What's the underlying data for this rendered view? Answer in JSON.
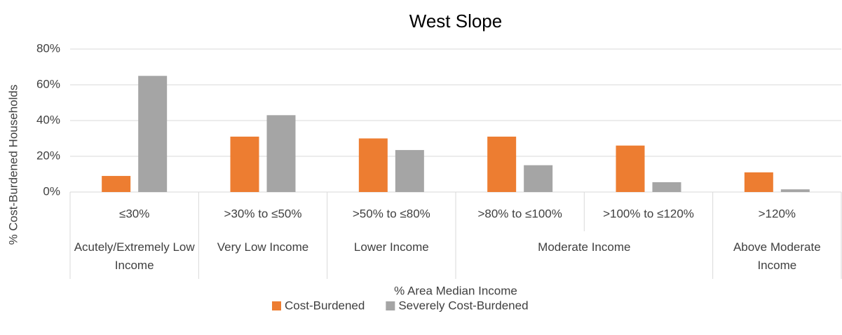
{
  "chart_data": {
    "type": "bar",
    "title": "West Slope",
    "categories": [
      "≤30%",
      ">30% to ≤50%",
      ">50% to ≤80%",
      ">80% to ≤100%",
      ">100% to ≤120%",
      ">120%"
    ],
    "group_labels": [
      "Acutely/Extremely Low Income",
      "Very Low Income",
      "Lower Income",
      "Moderate Income",
      null,
      "Above Moderate Income"
    ],
    "series": [
      {
        "name": "Cost-Burdened",
        "color": "#ed7d31",
        "values": [
          9,
          31,
          30,
          31,
          26,
          11
        ]
      },
      {
        "name": "Severely Cost-Burdened",
        "color": "#a5a5a5",
        "values": [
          65,
          43,
          23.5,
          15,
          5.5,
          1.5
        ]
      }
    ],
    "x_label": "% Area Median Income",
    "y_label": "% Cost-Burdened Households",
    "ylim": [
      0,
      80
    ],
    "yticks": [
      {
        "value": 0,
        "label": "0%"
      },
      {
        "value": 20,
        "label": "20%"
      },
      {
        "value": 40,
        "label": "40%"
      },
      {
        "value": 60,
        "label": "60%"
      },
      {
        "value": 80,
        "label": "80%"
      }
    ],
    "grid": true,
    "legend": "bottom"
  }
}
